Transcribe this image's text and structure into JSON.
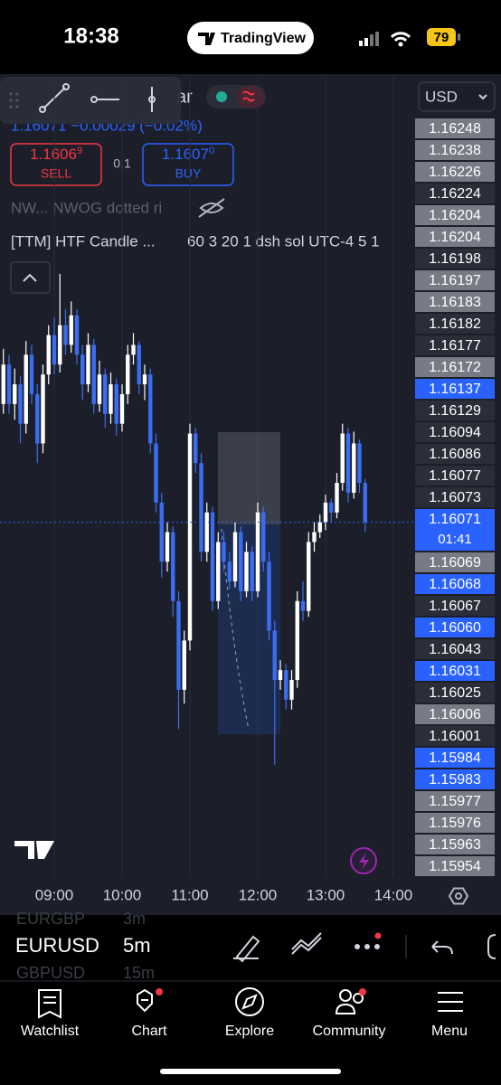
{
  "status_bar": {
    "time": "18:38",
    "app": "TradingView",
    "battery": "79"
  },
  "toolbar": {
    "symbol_fragment": "ar",
    "quote": "1.16071 −0.00029 (−0.02%)",
    "currency": "USD"
  },
  "trade": {
    "sell_price": "1.1606",
    "sell_super": "9",
    "sell_label": "SELL",
    "spread": "0.1",
    "buy_price": "1.1607",
    "buy_super": "0",
    "buy_label": "BUY"
  },
  "indicators": [
    "NW... NWOG dotted ri",
    "[TTM] HTF Candle ...",
    "60 3 20 1 dsh sol UTC-4 5 1"
  ],
  "chart": {
    "type": "candlestick",
    "up_color": "#ffffff",
    "down_color": "#3a6df0",
    "ylim": [
      1.15891,
      1.16297
    ],
    "x": [
      "08:15",
      "08:20",
      "08:25",
      "08:30",
      "08:35",
      "08:40",
      "08:45",
      "08:50",
      "08:55",
      "09:00",
      "09:05",
      "09:10",
      "09:15",
      "09:20",
      "09:25",
      "09:30",
      "09:35",
      "09:40",
      "09:45",
      "09:50",
      "09:55",
      "10:00",
      "10:05",
      "10:10",
      "10:15",
      "10:20",
      "10:25",
      "10:30",
      "10:35",
      "10:40",
      "10:45",
      "10:50",
      "10:55",
      "11:00",
      "11:05",
      "11:10",
      "11:15",
      "11:20",
      "11:25",
      "11:30",
      "11:35",
      "11:40",
      "11:45",
      "11:50",
      "11:55",
      "12:00",
      "12:05",
      "12:10",
      "12:15",
      "12:20",
      "12:25",
      "12:30",
      "12:35",
      "12:40",
      "12:45",
      "12:50",
      "12:55",
      "13:00",
      "13:05",
      "13:10",
      "13:15",
      "13:20",
      "13:25",
      "13:30",
      "13:35"
    ],
    "open": [
      1.16131,
      1.16151,
      1.16131,
      1.16141,
      1.16121,
      1.16156,
      1.16136,
      1.16111,
      1.16146,
      1.16166,
      1.16151,
      1.16171,
      1.16161,
      1.16176,
      1.16156,
      1.16141,
      1.16161,
      1.16131,
      1.16146,
      1.16126,
      1.16141,
      1.16121,
      1.16136,
      1.16156,
      1.16161,
      1.16141,
      1.16146,
      1.16111,
      1.16081,
      1.16051,
      1.16066,
      1.16031,
      1.15986,
      1.16011,
      1.16116,
      1.16101,
      1.16056,
      1.16076,
      1.16031,
      1.16061,
      1.16051,
      1.16041,
      1.16066,
      1.16036,
      1.16056,
      1.16036,
      1.16076,
      1.16051,
      1.16016,
      1.15991,
      1.15996,
      1.15981,
      1.15991,
      1.16031,
      1.16026,
      1.16061,
      1.16066,
      1.16071,
      1.16081,
      1.16076,
      1.16091,
      1.16116,
      1.16086,
      1.16111,
      1.16091
    ],
    "high": [
      1.16159,
      1.16156,
      1.16149,
      1.16145,
      1.16163,
      1.16161,
      1.16141,
      1.16151,
      1.16171,
      1.16175,
      1.16197,
      1.16179,
      1.16183,
      1.16179,
      1.16161,
      1.16167,
      1.16164,
      1.16153,
      1.16149,
      1.16147,
      1.16144,
      1.16141,
      1.16161,
      1.16167,
      1.16163,
      1.16151,
      1.16149,
      1.16116,
      1.16086,
      1.16071,
      1.16069,
      1.16036,
      1.16016,
      1.16121,
      1.16119,
      1.16106,
      1.16081,
      1.16079,
      1.16066,
      1.16066,
      1.16056,
      1.16071,
      1.16069,
      1.16061,
      1.16059,
      1.16081,
      1.16079,
      1.16056,
      1.16021,
      1.16001,
      1.15999,
      1.15996,
      1.16036,
      1.16041,
      1.16066,
      1.16071,
      1.16075,
      1.16085,
      1.16083,
      1.16096,
      1.16121,
      1.16119,
      1.16117,
      1.16113,
      1.16093
    ],
    "low": [
      1.16126,
      1.16126,
      1.16123,
      1.16111,
      1.16116,
      1.16131,
      1.16101,
      1.16106,
      1.16141,
      1.16146,
      1.16147,
      1.16156,
      1.16157,
      1.16151,
      1.16133,
      1.16137,
      1.16126,
      1.16127,
      1.16119,
      1.16121,
      1.16115,
      1.16117,
      1.16131,
      1.16151,
      1.16136,
      1.16133,
      1.16106,
      1.16076,
      1.16043,
      1.16046,
      1.16023,
      1.15966,
      1.15979,
      1.16006,
      1.16096,
      1.16051,
      1.16051,
      1.16026,
      1.16027,
      1.16046,
      1.16037,
      1.16038,
      1.16031,
      1.16033,
      1.16031,
      1.16033,
      1.16046,
      1.16011,
      1.15948,
      1.15986,
      1.15976,
      1.15976,
      1.15987,
      1.16021,
      1.16023,
      1.16056,
      1.16063,
      1.16067,
      1.16071,
      1.16073,
      1.16087,
      1.16081,
      1.16083,
      1.16086,
      1.16066
    ],
    "close": [
      1.16151,
      1.16131,
      1.16141,
      1.16121,
      1.16156,
      1.16136,
      1.16111,
      1.16146,
      1.16166,
      1.16151,
      1.16171,
      1.16161,
      1.16176,
      1.16156,
      1.16141,
      1.16161,
      1.16131,
      1.16146,
      1.16126,
      1.16141,
      1.16121,
      1.16136,
      1.16156,
      1.16161,
      1.16141,
      1.16146,
      1.16111,
      1.16081,
      1.16051,
      1.16066,
      1.16031,
      1.15986,
      1.16011,
      1.16116,
      1.16101,
      1.16056,
      1.16076,
      1.16031,
      1.16061,
      1.16051,
      1.16041,
      1.16066,
      1.16036,
      1.16056,
      1.16036,
      1.16076,
      1.16051,
      1.16016,
      1.15991,
      1.15996,
      1.15981,
      1.15991,
      1.16031,
      1.16026,
      1.16061,
      1.16066,
      1.16071,
      1.16081,
      1.16076,
      1.16091,
      1.16116,
      1.16086,
      1.16111,
      1.16091,
      1.16071
    ]
  },
  "price_labels": [
    {
      "text": "1.16248",
      "bg": "#787b86"
    },
    {
      "text": "1.16238",
      "bg": "#787b86"
    },
    {
      "text": "1.16226",
      "bg": "#787b86"
    },
    {
      "text": "1.16224",
      "bg": "#2a2e39"
    },
    {
      "text": "1.16204",
      "bg": "#787b86"
    },
    {
      "text": "1.16204",
      "bg": "#787b86"
    },
    {
      "text": "1.16198",
      "bg": "#2a2e39"
    },
    {
      "text": "1.16197",
      "bg": "#787b86"
    },
    {
      "text": "1.16183",
      "bg": "#787b86"
    },
    {
      "text": "1.16182",
      "bg": "#2a2e39"
    },
    {
      "text": "1.16177",
      "bg": "#2a2e39"
    },
    {
      "text": "1.16172",
      "bg": "#787b86"
    },
    {
      "text": "1.16137",
      "bg": "#2962ff"
    },
    {
      "text": "1.16129",
      "bg": "#2a2e39"
    },
    {
      "text": "1.16094",
      "bg": "#2a2e39"
    },
    {
      "text": "1.16086",
      "bg": "#2a2e39"
    },
    {
      "text": "1.16077",
      "bg": "#2a2e39"
    },
    {
      "text": "1.16073",
      "bg": "#2a2e39"
    },
    {
      "text": "1.16071",
      "sub": "01:41",
      "bg": "#2962ff"
    },
    {
      "text": "1.16069",
      "bg": "#787b86"
    },
    {
      "text": "1.16068",
      "bg": "#2962ff"
    },
    {
      "text": "1.16067",
      "bg": "#2a2e39"
    },
    {
      "text": "1.16060",
      "bg": "#2962ff"
    },
    {
      "text": "1.16043",
      "bg": "#2a2e39"
    },
    {
      "text": "1.16031",
      "bg": "#2962ff"
    },
    {
      "text": "1.16025",
      "bg": "#2a2e39"
    },
    {
      "text": "1.16006",
      "bg": "#787b86"
    },
    {
      "text": "1.16001",
      "bg": "#2a2e39"
    },
    {
      "text": "1.15984",
      "bg": "#2962ff"
    },
    {
      "text": "1.15983",
      "bg": "#2962ff"
    },
    {
      "text": "1.15977",
      "bg": "#787b86"
    },
    {
      "text": "1.15976",
      "bg": "#787b86"
    },
    {
      "text": "1.15963",
      "bg": "#787b86"
    },
    {
      "text": "1.15954",
      "bg": "#787b86"
    }
  ],
  "time_labels": [
    "09:00",
    "10:00",
    "11:00",
    "12:00",
    "13:00",
    "14:00"
  ],
  "symbols": [
    {
      "name": "EURGBP",
      "tf": "3m"
    },
    {
      "name": "EURUSD",
      "tf": "5m"
    },
    {
      "name": "GBPUSD",
      "tf": "15m"
    }
  ],
  "nav": [
    "Watchlist",
    "Chart",
    "Explore",
    "Community",
    "Menu"
  ]
}
